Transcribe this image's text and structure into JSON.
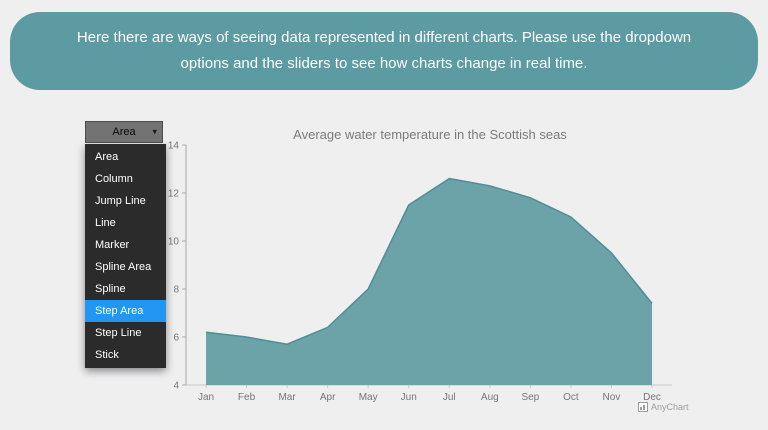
{
  "banner": {
    "text": "Here there are ways of seeing data represented in different charts. Please use the dropdown options and the sliders to see how charts change in real time."
  },
  "dropdown": {
    "selected": "Area",
    "caret_glyph": "▾",
    "highlighted": "Step Area",
    "options": [
      "Area",
      "Column",
      "Jump Line",
      "Line",
      "Marker",
      "Spline Area",
      "Spline",
      "Step Area",
      "Step Line",
      "Stick"
    ]
  },
  "chart_data": {
    "type": "area",
    "title": "Average water temperature in the Scottish seas",
    "categories": [
      "Jan",
      "Feb",
      "Mar",
      "Apr",
      "May",
      "Jun",
      "Jul",
      "Aug",
      "Sep",
      "Oct",
      "Nov",
      "Dec"
    ],
    "values": [
      6.2,
      6.0,
      5.7,
      6.4,
      8.0,
      11.5,
      12.6,
      12.3,
      11.8,
      11.0,
      9.5,
      7.4
    ],
    "xlabel": "",
    "ylabel": "",
    "ylim": [
      4,
      14
    ],
    "yticks": [
      4,
      6,
      8,
      10,
      12,
      14
    ],
    "grid": false,
    "legend": false,
    "area_color": "#6ba3a9",
    "line_color": "#4f8e95"
  },
  "credit": {
    "label": "AnyChart"
  },
  "colors": {
    "banner_bg": "#5d9ba2",
    "page_bg": "#efeff0",
    "menu_bg": "#2b2b2b",
    "menu_highlight": "#2196f3",
    "axis_text": "#767676",
    "title_text": "#7b7b7b"
  }
}
